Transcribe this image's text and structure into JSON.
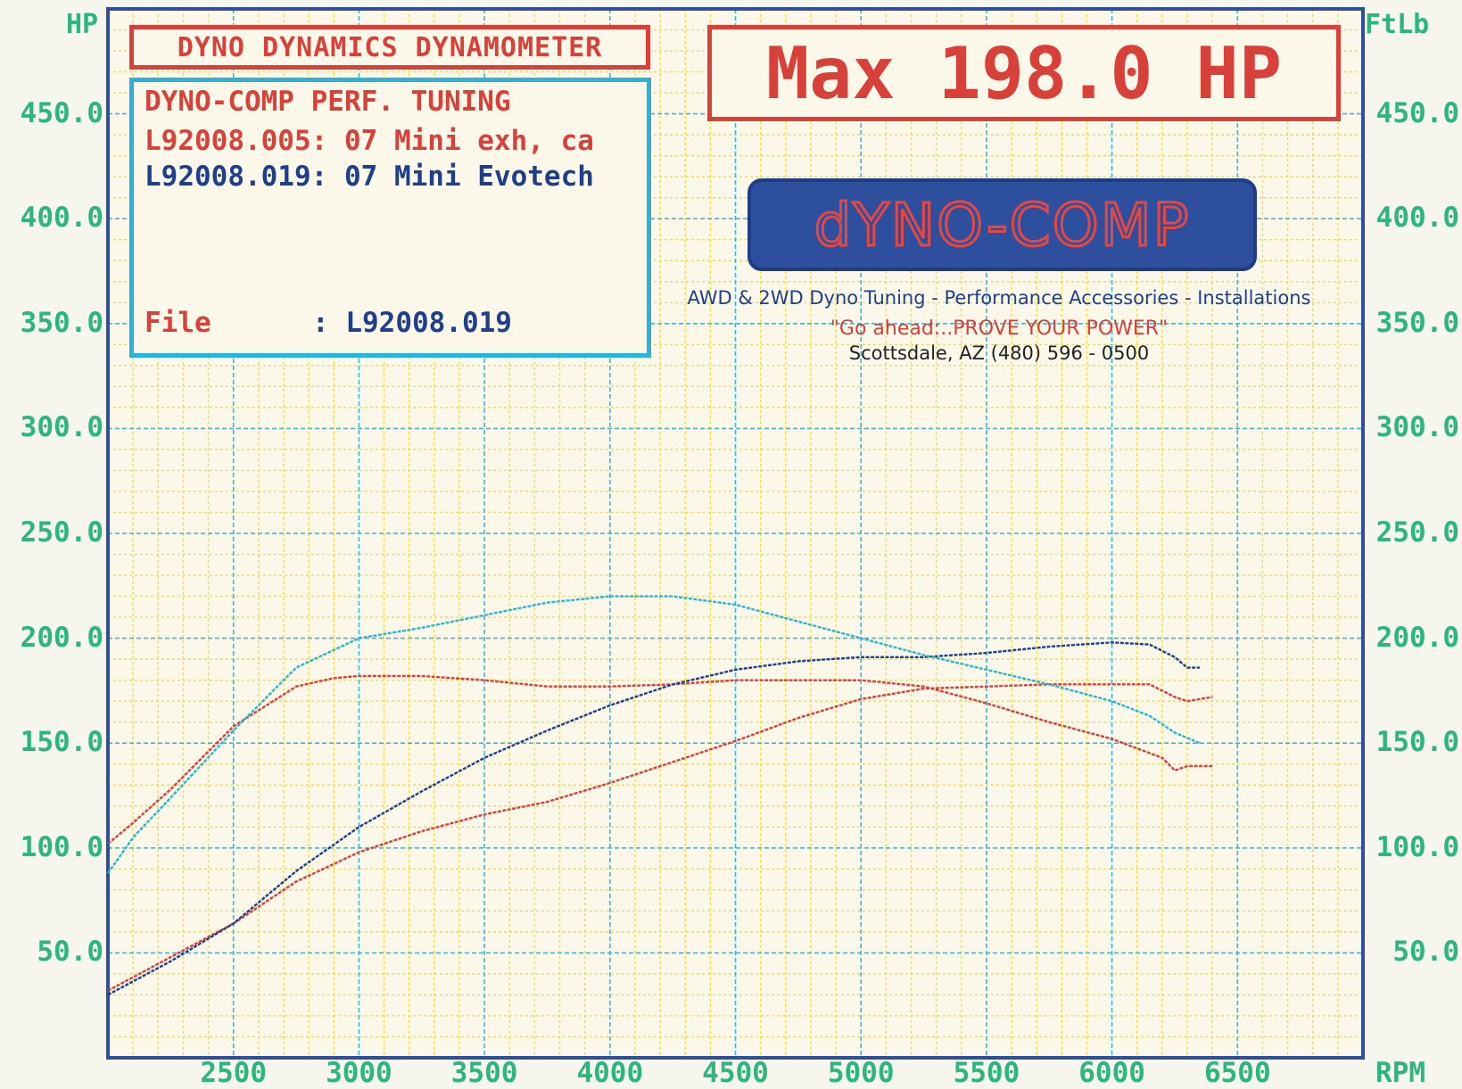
{
  "header": {
    "title": "DYNO DYNAMICS DYNAMOMETER",
    "max_label": "Max 198.0 HP"
  },
  "info_box": {
    "line1": "DYNO-COMP PERF. TUNING",
    "run1": "L92008.005: 07 Mini exh, ca",
    "run2": "L92008.019: 07 Mini Evotech",
    "file_label": "File",
    "file_value": ": L92008.019"
  },
  "logo": {
    "text": "dYNO-COMP",
    "tagline": "AWD & 2WD Dyno Tuning - Performance Accessories - Installations",
    "slogan": "\"Go ahead:..PROVE YOUR POWER\"",
    "contact": "Scottsdale, AZ (480) 596 - 0500"
  },
  "colors": {
    "run1": "#d8403a",
    "run2_light": "#2bb6cf",
    "run2_dark": "#1f3f8a",
    "axis_text": "#2bb67e",
    "grid_blue": "#3fb6d6",
    "grid_yellow": "#f4d84e",
    "paper": "#fbf8ea"
  },
  "chart_data": {
    "type": "line",
    "x_label": "RPM",
    "y_label_left": "HP",
    "y_label_right": "FtLb",
    "x_ticks": [
      "2500",
      "3000",
      "3500",
      "4000",
      "4500",
      "5000",
      "5500",
      "6000",
      "6500"
    ],
    "y_ticks": [
      "50.0",
      "100.0",
      "150.0",
      "200.0",
      "250.0",
      "300.0",
      "350.0",
      "400.0",
      "450.0"
    ],
    "y_ticks_right": [
      "50.0",
      "100.0",
      "150.0",
      "200.0",
      "250.0",
      "300.0",
      "350.0",
      "400.0",
      "450.0"
    ],
    "xlim": [
      2000,
      7000
    ],
    "ylim": [
      0,
      500
    ],
    "series": [
      {
        "name": "L92008.005 HP",
        "color": "#d8403a",
        "x": [
          2000,
          2250,
          2500,
          2750,
          3000,
          3250,
          3500,
          3750,
          4000,
          4250,
          4500,
          4750,
          5000,
          5250,
          5500,
          5750,
          6000,
          6150,
          6250,
          6300,
          6400
        ],
        "y": [
          32,
          48,
          64,
          84,
          98,
          108,
          116,
          122,
          131,
          141,
          151,
          162,
          171,
          176,
          177,
          178,
          178,
          178,
          172,
          170,
          172
        ]
      },
      {
        "name": "L92008.005 FtLb",
        "color": "#d8403a",
        "x": [
          2000,
          2100,
          2250,
          2500,
          2750,
          2900,
          3000,
          3250,
          3500,
          3750,
          4000,
          4250,
          4500,
          5000,
          5250,
          5500,
          5750,
          6000,
          6200,
          6250,
          6300,
          6400
        ],
        "y": [
          102,
          112,
          128,
          158,
          177,
          181,
          182,
          182,
          180,
          177,
          177,
          178,
          180,
          180,
          177,
          169,
          160,
          152,
          143,
          137,
          139,
          139
        ]
      },
      {
        "name": "L92008.019 HP",
        "color": "#1f3f8a",
        "x": [
          2000,
          2250,
          2500,
          2750,
          3000,
          3250,
          3500,
          3750,
          4000,
          4250,
          4500,
          4750,
          5000,
          5250,
          5500,
          5750,
          6000,
          6150,
          6250,
          6300,
          6350
        ],
        "y": [
          30,
          46,
          64,
          89,
          110,
          127,
          143,
          156,
          168,
          178,
          185,
          189,
          191,
          191,
          193,
          196,
          198,
          197,
          191,
          186,
          186
        ]
      },
      {
        "name": "L92008.019 FtLb",
        "color": "#2bb6cf",
        "x": [
          2000,
          2100,
          2250,
          2500,
          2750,
          3000,
          3250,
          3500,
          3750,
          4000,
          4250,
          4500,
          4750,
          5000,
          5250,
          5500,
          5750,
          6000,
          6150,
          6250,
          6350
        ],
        "y": [
          88,
          105,
          124,
          156,
          186,
          200,
          205,
          211,
          217,
          220,
          220,
          216,
          208,
          200,
          192,
          185,
          178,
          170,
          163,
          155,
          150
        ]
      }
    ]
  }
}
